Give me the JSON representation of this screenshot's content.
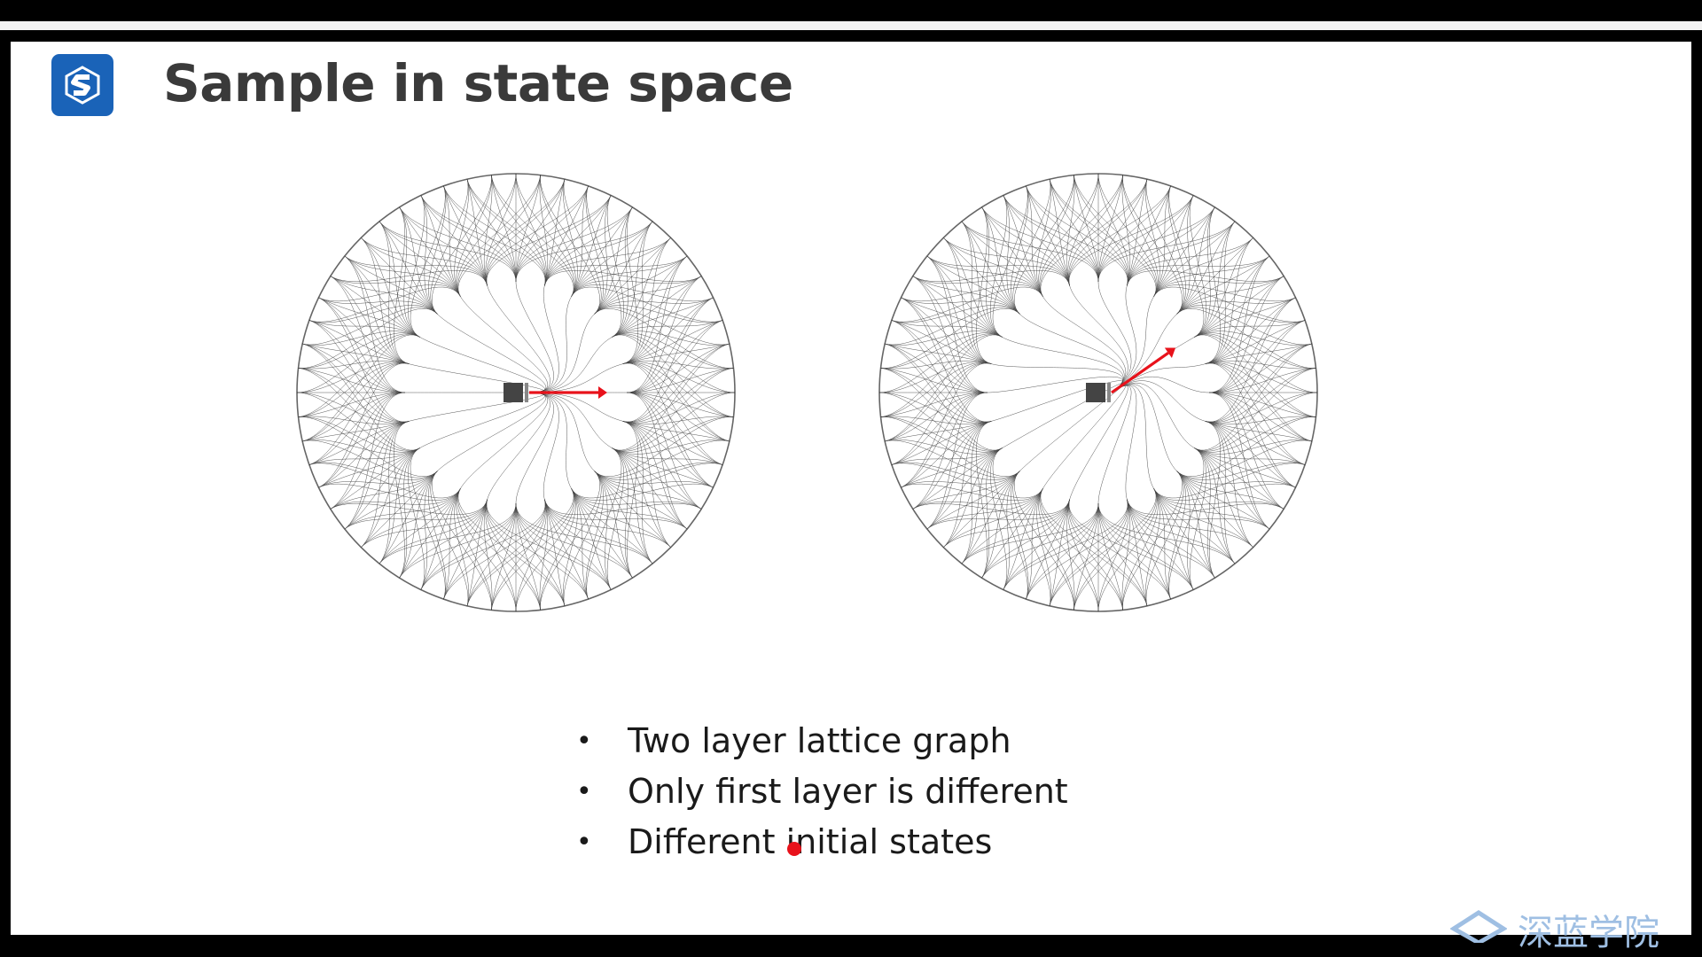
{
  "slide": {
    "title": "Sample in state space",
    "logo_icon": "s-logo-icon",
    "brand_color": "#1a63b8",
    "bullets": [
      "Two layer lattice graph",
      "Only first layer is different",
      "Different initial states"
    ],
    "bullet_symbol": "•",
    "watermark": "深蓝学院"
  },
  "figures": [
    {
      "name": "lattice-graph-left",
      "arrow_heading_deg": 0,
      "arrow_color": "#e8121b"
    },
    {
      "name": "lattice-graph-right",
      "arrow_heading_deg": -35,
      "arrow_color": "#e8121b"
    }
  ]
}
